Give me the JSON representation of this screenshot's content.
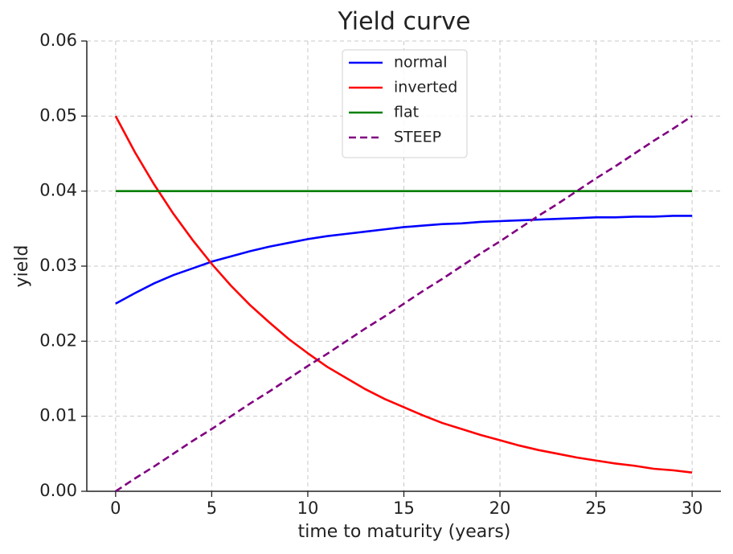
{
  "chart_data": {
    "type": "line",
    "title": "Yield curve",
    "xlabel": "time to maturity (years)",
    "ylabel": "yield",
    "x": [
      0,
      1,
      2,
      3,
      4,
      5,
      6,
      7,
      8,
      9,
      10,
      11,
      12,
      13,
      14,
      15,
      16,
      17,
      18,
      19,
      20,
      21,
      22,
      23,
      24,
      25,
      26,
      27,
      28,
      29,
      30
    ],
    "series": [
      {
        "name": "normal",
        "color": "#0000ff",
        "linestyle": "solid",
        "values": [
          0.025,
          0.0264,
          0.0277,
          0.0288,
          0.0297,
          0.0306,
          0.0313,
          0.032,
          0.0326,
          0.0331,
          0.0336,
          0.034,
          0.0343,
          0.0346,
          0.0349,
          0.0352,
          0.0354,
          0.0356,
          0.0357,
          0.0359,
          0.036,
          0.0361,
          0.0362,
          0.0363,
          0.0364,
          0.0365,
          0.0365,
          0.0366,
          0.0366,
          0.0367,
          0.0367
        ]
      },
      {
        "name": "inverted",
        "color": "#ff0000",
        "linestyle": "solid",
        "values": [
          0.05,
          0.0452,
          0.0409,
          0.037,
          0.0335,
          0.0303,
          0.0274,
          0.0248,
          0.0225,
          0.0203,
          0.0184,
          0.0166,
          0.0151,
          0.0136,
          0.0123,
          0.0112,
          0.0101,
          0.0091,
          0.0083,
          0.0075,
          0.0068,
          0.0061,
          0.0055,
          0.005,
          0.0045,
          0.0041,
          0.0037,
          0.0034,
          0.003,
          0.0028,
          0.0025
        ]
      },
      {
        "name": "flat",
        "color": "#007f00",
        "linestyle": "solid",
        "values": [
          0.04,
          0.04,
          0.04,
          0.04,
          0.04,
          0.04,
          0.04,
          0.04,
          0.04,
          0.04,
          0.04,
          0.04,
          0.04,
          0.04,
          0.04,
          0.04,
          0.04,
          0.04,
          0.04,
          0.04,
          0.04,
          0.04,
          0.04,
          0.04,
          0.04,
          0.04,
          0.04,
          0.04,
          0.04,
          0.04,
          0.04
        ]
      },
      {
        "name": "STEEP",
        "color": "#800080",
        "linestyle": "dashed",
        "values": [
          0,
          0.0017,
          0.0033,
          0.005,
          0.0067,
          0.0083,
          0.01,
          0.0117,
          0.0133,
          0.015,
          0.0167,
          0.0183,
          0.02,
          0.0217,
          0.0233,
          0.025,
          0.0267,
          0.0283,
          0.03,
          0.0317,
          0.0333,
          0.035,
          0.0367,
          0.0383,
          0.04,
          0.0417,
          0.0433,
          0.045,
          0.0467,
          0.0483,
          0.05
        ]
      }
    ],
    "xlim": [
      -1.5,
      31.5
    ],
    "xticks": [
      0,
      5,
      10,
      15,
      20,
      25,
      30
    ],
    "ylim": [
      0,
      0.06
    ],
    "yticks": [
      {
        "value": 0,
        "label": "0.00"
      },
      0.01,
      0.02,
      0.03,
      0.04,
      0.05,
      0.06
    ],
    "grid": true,
    "legend": "upper center"
  }
}
